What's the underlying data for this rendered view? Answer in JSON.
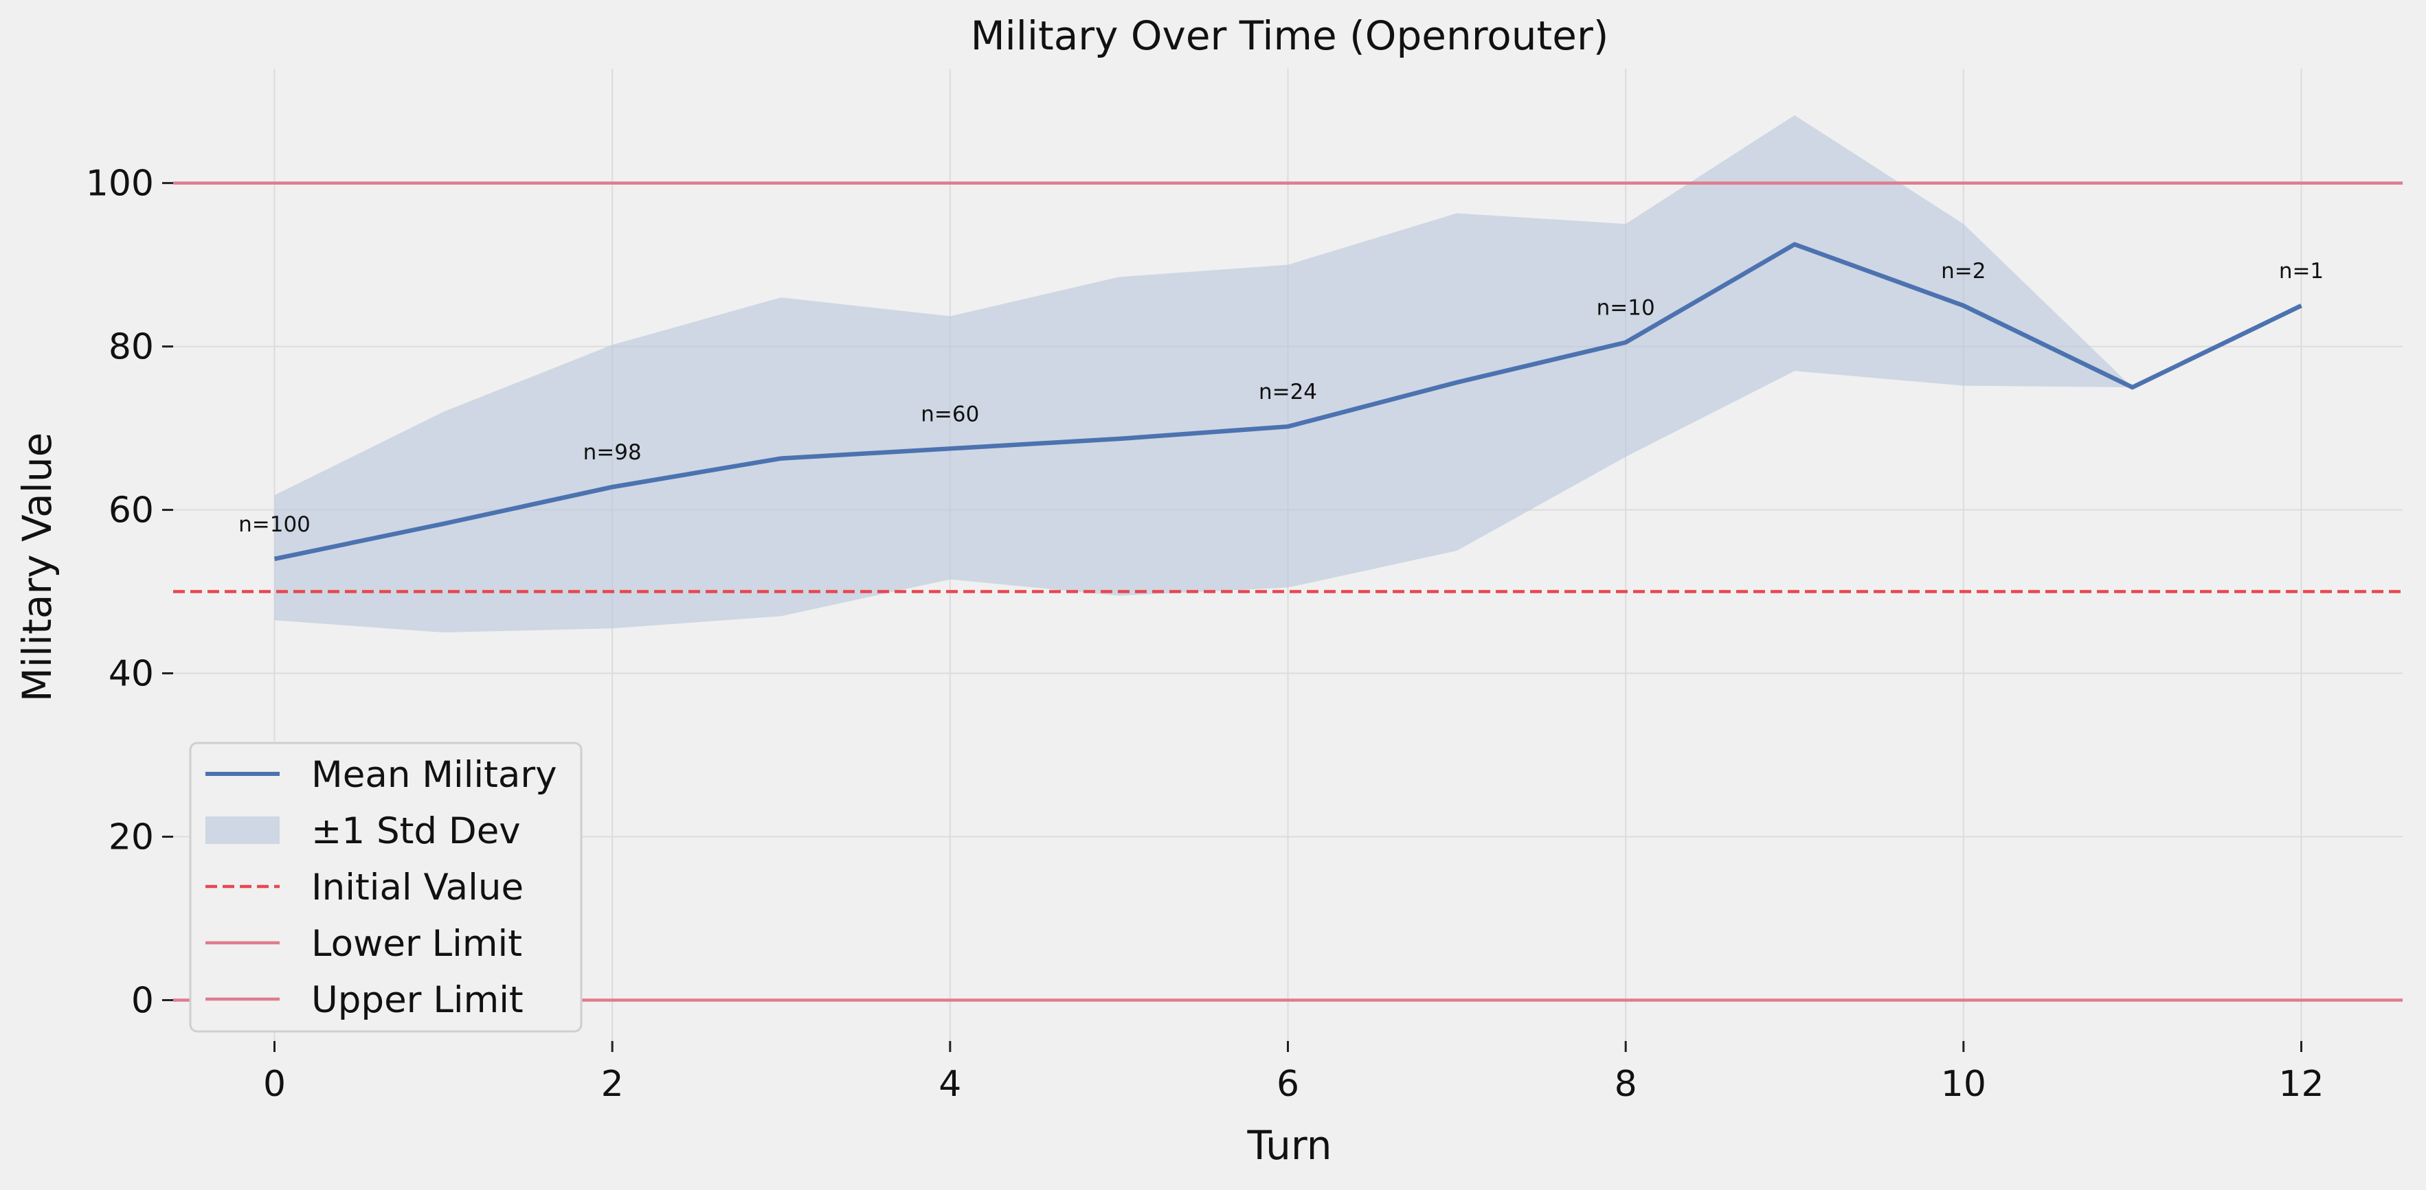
{
  "chart_data": {
    "type": "line",
    "title": "Military Over Time (Openrouter)",
    "xlabel": "Turn",
    "ylabel": "Military Value",
    "xlim": [
      -0.6,
      12.6
    ],
    "ylim": [
      -5,
      114
    ],
    "xticks": [
      0,
      2,
      4,
      6,
      8,
      10,
      12
    ],
    "xtick_labels": [
      "0",
      "2",
      "4",
      "6",
      "8",
      "10",
      "12"
    ],
    "yticks": [
      0,
      20,
      40,
      60,
      80,
      100
    ],
    "ytick_labels": [
      "0",
      "20",
      "40",
      "60",
      "80",
      "100"
    ],
    "grid": true,
    "legend_position": "lower-left",
    "x": [
      0,
      1,
      2,
      3,
      4,
      5,
      6,
      7,
      8,
      9,
      10,
      11,
      12
    ],
    "series": [
      {
        "name": "Mean Military",
        "type": "line",
        "color": "#4c72b0",
        "values": [
          54,
          58.3,
          62.8,
          66.3,
          67.5,
          68.7,
          70.2,
          75.6,
          80.5,
          92.5,
          85,
          75,
          85
        ]
      },
      {
        "name": "±1 Std Dev",
        "type": "band",
        "color": "#b8c6db",
        "lower": [
          46.5,
          45,
          45.5,
          47,
          51.5,
          49.5,
          50.5,
          55,
          66.5,
          77,
          75.2,
          75,
          85
        ],
        "upper": [
          61.8,
          72,
          80.2,
          86,
          83.7,
          88.5,
          90,
          96.3,
          95,
          108.3,
          95,
          75,
          85
        ]
      }
    ],
    "reference_lines": [
      {
        "name": "Initial Value",
        "y": 50,
        "style": "dashed",
        "color": "#e8474f"
      },
      {
        "name": "Lower Limit",
        "y": 0,
        "style": "solid",
        "color": "#e07b8e"
      },
      {
        "name": "Upper Limit",
        "y": 100,
        "style": "solid",
        "color": "#e07b8e"
      }
    ],
    "annotations": [
      {
        "text": "n=100",
        "x": 0
      },
      {
        "text": "n=98",
        "x": 2
      },
      {
        "text": "n=60",
        "x": 4
      },
      {
        "text": "n=24",
        "x": 6
      },
      {
        "text": "n=10",
        "x": 8
      },
      {
        "text": "n=2",
        "x": 10
      },
      {
        "text": "n=1",
        "x": 12
      }
    ],
    "legend": [
      "Mean Military",
      "±1 Std Dev",
      "Initial Value",
      "Lower Limit",
      "Upper Limit"
    ]
  }
}
